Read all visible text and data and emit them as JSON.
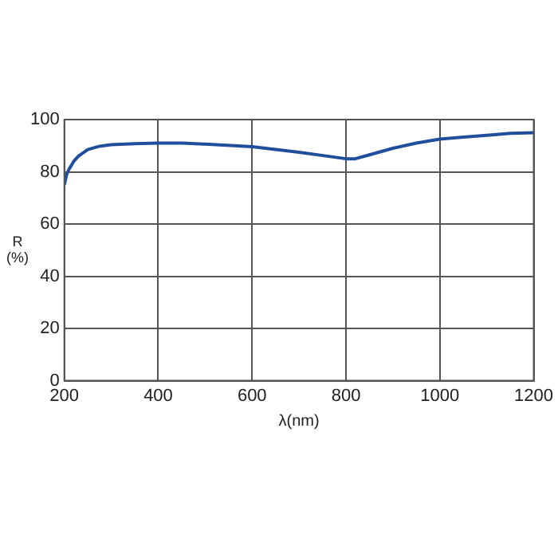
{
  "chart_data": {
    "type": "line",
    "xlabel": "λ(nm)",
    "ylabel": "R\n(%)",
    "x": [
      200,
      205,
      210,
      220,
      230,
      250,
      275,
      300,
      350,
      400,
      450,
      500,
      600,
      700,
      760,
      800,
      820,
      850,
      900,
      950,
      1000,
      1050,
      1100,
      1150,
      1200
    ],
    "series": [
      {
        "color": "#1f4e9c",
        "values": [
          75,
          79,
          81,
          84,
          86,
          88.5,
          89.8,
          90.4,
          90.8,
          91,
          91,
          90.6,
          89.6,
          87.5,
          86,
          85,
          85,
          86.5,
          89,
          91,
          92.5,
          93.3,
          94,
          94.7,
          95
        ]
      }
    ],
    "xlim": [
      200,
      1200
    ],
    "xticks": [
      200,
      400,
      600,
      800,
      1000,
      1200
    ],
    "ylim": [
      0,
      100
    ],
    "yticks": [
      0,
      20,
      40,
      60,
      80,
      100
    ],
    "grid": true,
    "legend": false,
    "marker": "none",
    "line_style": "solid"
  }
}
